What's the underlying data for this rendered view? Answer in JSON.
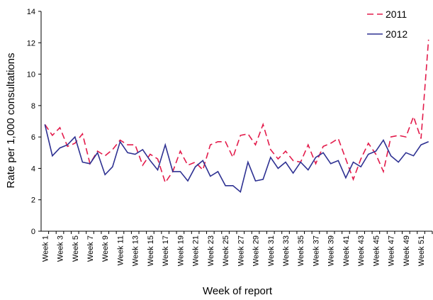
{
  "chart_data": {
    "type": "line",
    "x_label": "Week of report",
    "y_label": "Rate per 1,000 consultations",
    "categories": [
      "Week 1",
      null,
      "Week 3",
      null,
      "Week 5",
      null,
      "Week 7",
      null,
      "Week 9",
      null,
      "Week 11",
      null,
      "Week 13",
      null,
      "Week 15",
      null,
      "Week 17",
      null,
      "Week 19",
      null,
      "Week 21",
      null,
      "Week 23",
      null,
      "Week 25",
      null,
      "Week 27",
      null,
      "Week 29",
      null,
      "Week 31",
      null,
      "Week 33",
      null,
      "Week 35",
      null,
      "Week 37",
      null,
      "Week 39",
      null,
      "Week 41",
      null,
      "Week 43",
      null,
      "Week 45",
      null,
      "Week 47",
      null,
      "Week 49",
      null,
      "Week 51",
      null
    ],
    "series": [
      {
        "name": "2011",
        "color": "#e31b4b",
        "dashed": true,
        "values": [
          6.8,
          6.1,
          6.6,
          5.4,
          5.6,
          6.2,
          4.3,
          5.1,
          4.8,
          5.2,
          5.8,
          5.5,
          5.5,
          4.2,
          4.9,
          4.6,
          3.1,
          3.8,
          5.1,
          4.2,
          4.4,
          3.9,
          5.5,
          5.7,
          5.7,
          4.7,
          6.1,
          6.2,
          5.5,
          6.8,
          5.2,
          4.6,
          5.1,
          4.5,
          4.4,
          5.5,
          4.3,
          5.4,
          5.6,
          5.9,
          4.6,
          3.3,
          4.6,
          5.6,
          4.9,
          3.8,
          6.0,
          6.1,
          6.0,
          7.3,
          5.9,
          12.2
        ]
      },
      {
        "name": "2012",
        "color": "#2e3192",
        "dashed": false,
        "values": [
          6.8,
          4.8,
          5.3,
          5.5,
          6.0,
          4.4,
          4.3,
          5.0,
          3.6,
          4.1,
          5.7,
          5.0,
          4.9,
          5.2,
          4.5,
          3.9,
          5.5,
          3.8,
          3.8,
          3.2,
          4.1,
          4.5,
          3.5,
          3.8,
          2.9,
          2.9,
          2.5,
          4.4,
          3.2,
          3.3,
          4.7,
          4.0,
          4.4,
          3.7,
          4.4,
          3.9,
          4.7,
          5.0,
          4.3,
          4.5,
          3.4,
          4.4,
          4.1,
          4.9,
          5.1,
          5.8,
          4.8,
          4.4,
          5.0,
          4.8,
          5.5,
          5.7
        ]
      }
    ],
    "ylim": [
      0,
      14
    ],
    "yticks": [
      0,
      2,
      4,
      6,
      8,
      10,
      12,
      14
    ],
    "legend": "top-right"
  }
}
